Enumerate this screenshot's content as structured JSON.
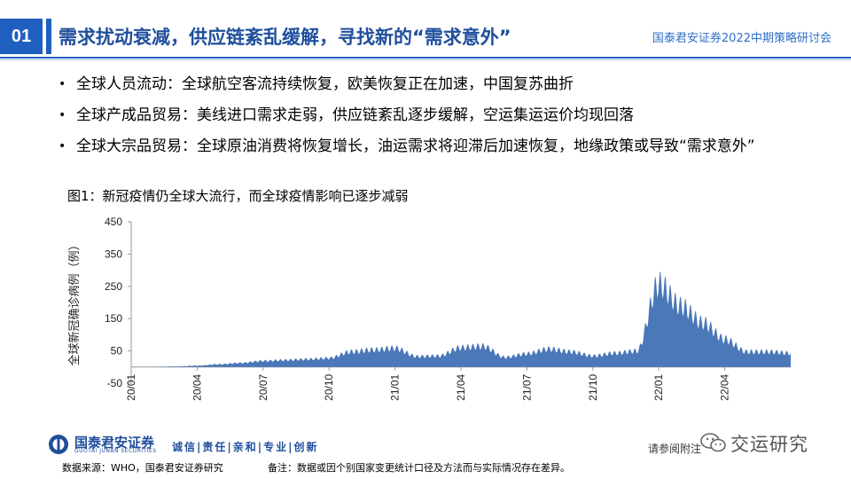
{
  "header": {
    "section_number": "01",
    "title": "需求扰动衰减，供应链紊乱缓解，寻找新的“需求意外”",
    "organization": "国泰君安证券2022中期策略研讨会"
  },
  "bullets": [
    "全球人员流动：全球航空客流持续恢复，欧美恢复正在加速，中国复苏曲折",
    "全球产成品贸易：美线进口需求走弱，供应链紊乱逐步缓解，空运集运运价均现回落",
    "全球大宗品贸易：全球原油消费将恢复增长，油运需求将迎滞后加速恢复，地缘政策或导致“需求意外”"
  ],
  "figure": {
    "title": "图1：新冠疫情仍全球大流行，而全球疫情影响已逐步减弱"
  },
  "chart_data": {
    "type": "area",
    "title": "",
    "xlabel": "",
    "ylabel": "全球新冠确诊病例（例）",
    "ylim": [
      -50,
      450
    ],
    "yticks": [
      450,
      350,
      250,
      150,
      50,
      -50
    ],
    "ytick_labels": [
      "450",
      "350",
      "250",
      "150",
      "50",
      "-50"
    ],
    "xlim": [
      "2020-01",
      "2022-07"
    ],
    "xtick_labels": [
      "20/01",
      "20/04",
      "20/07",
      "20/10",
      "21/01",
      "21/04",
      "21/07",
      "21/10",
      "22/01",
      "22/04"
    ],
    "color": "#4a78b8",
    "grid": false,
    "legend": "none",
    "x": [
      "2020-01",
      "2020-02",
      "2020-03",
      "2020-04",
      "2020-05",
      "2020-06",
      "2020-07",
      "2020-08",
      "2020-09",
      "2020-10",
      "2020-11",
      "2020-12",
      "2021-01",
      "2021-02",
      "2021-03",
      "2021-04",
      "2021-05",
      "2021-06",
      "2021-07",
      "2021-08",
      "2021-09",
      "2021-10",
      "2021-11",
      "2021-12",
      "2022-01",
      "2022-02",
      "2022-03",
      "2022-04",
      "2022-05",
      "2022-06",
      "2022-07"
    ],
    "values": [
      0,
      0,
      2,
      5,
      10,
      15,
      22,
      25,
      28,
      32,
      55,
      62,
      68,
      38,
      40,
      70,
      75,
      35,
      48,
      65,
      55,
      40,
      50,
      58,
      300,
      220,
      160,
      100,
      55,
      55,
      50
    ]
  },
  "footer": {
    "logo_cn": "国泰君安证券",
    "logo_en": "GUOTAI JUNAN SECURITIES",
    "slogan": "诚信|责任|亲和|专业|创新",
    "disclaimer": "请参阅附注",
    "source": "数据来源：WHO，国泰君安证券研究",
    "note": "备注：数据或因个别国家变更统计口径及方法而与实际情况存在差异。",
    "watermark": "交运研究",
    "watermark_icon": "wechat-icon"
  }
}
